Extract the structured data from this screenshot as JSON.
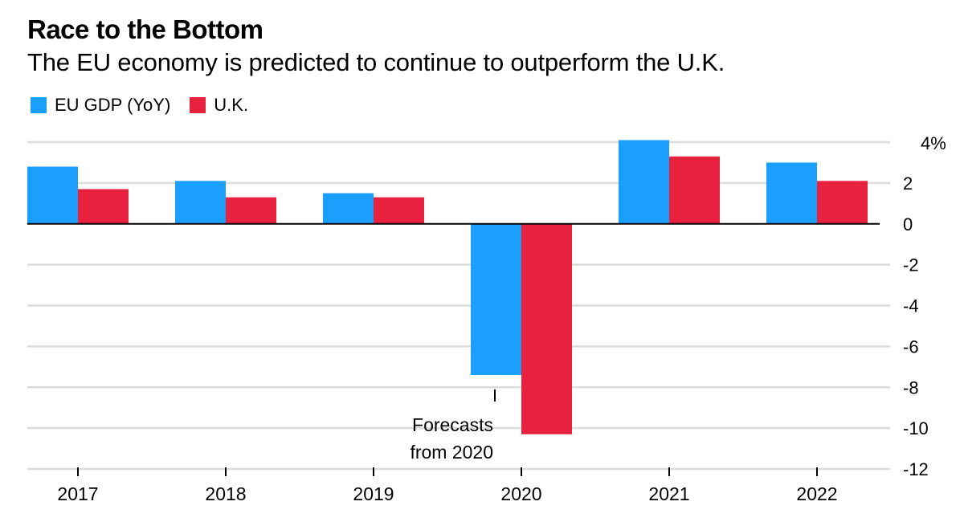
{
  "chart_data": {
    "type": "bar",
    "title": "Race to the Bottom",
    "subtitle": "The EU economy is predicted to continue to outperform the U.K.",
    "categories": [
      "2017",
      "2018",
      "2019",
      "2020",
      "2021",
      "2022"
    ],
    "series": [
      {
        "name": "EU GDP (YoY)",
        "color": "#1a9fff",
        "values": [
          2.8,
          2.1,
          1.5,
          -7.4,
          4.1,
          3.0
        ]
      },
      {
        "name": "U.K.",
        "color": "#e8213f",
        "values": [
          1.7,
          1.3,
          1.3,
          -10.3,
          3.3,
          2.1
        ]
      }
    ],
    "ylim": [
      -12,
      4
    ],
    "yticks": [
      4,
      2,
      0,
      -2,
      -4,
      -6,
      -8,
      -10,
      -12
    ],
    "ytick_labels": [
      "4%",
      "2",
      "0",
      "-2",
      "-4",
      "-6",
      "-8",
      "-10",
      "-12"
    ],
    "annotation": {
      "lines": [
        "Forecasts",
        "from 2020"
      ],
      "category": "2020"
    },
    "grid": true,
    "legend_position": "top-left",
    "axis_position": "right"
  }
}
